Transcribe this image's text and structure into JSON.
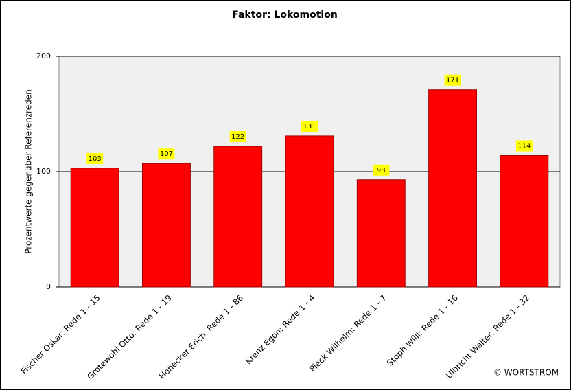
{
  "chart_data": {
    "type": "bar",
    "title": "Faktor: Lokomotion",
    "y_label": "Prozentwerte  gegenüber Referenzreden",
    "categories": [
      "Fischer Oskar: Rede 1 - 15",
      "Grotewohl Otto: Rede 1 - 19",
      "Honecker Erich: Rede 1 - 86",
      "Krenz Egon: Rede 1 - 4",
      "Pieck Wilhelm: Rede 1 - 7",
      "Stoph Willi: Rede 1 - 16",
      "Ulbricht Walter: Rede 1 - 32"
    ],
    "values": [
      103,
      107,
      122,
      131,
      93,
      171,
      114
    ],
    "color": "#ff0000",
    "ylim": [
      0,
      200
    ],
    "yticks": [
      0,
      100,
      200
    ],
    "grid": true,
    "credit": "© WORTSTROM"
  }
}
